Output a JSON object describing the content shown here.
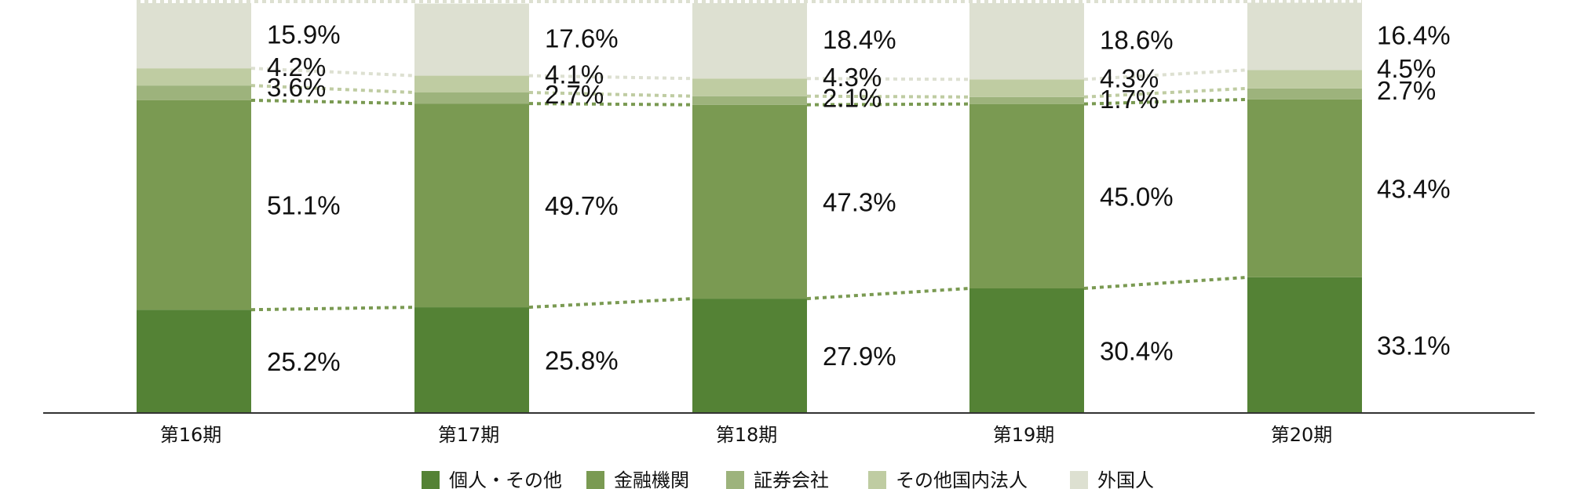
{
  "chart_data": {
    "type": "bar",
    "stacked": true,
    "categories": [
      "第16期",
      "第17期",
      "第18期",
      "第19期",
      "第20期"
    ],
    "ylim": [
      0,
      100
    ],
    "grid": false,
    "legend_position": "bottom",
    "connector_lines": "dotted",
    "series": [
      {
        "name": "個人・その他",
        "color": "#548235",
        "values": [
          25.2,
          25.8,
          27.9,
          30.4,
          33.1
        ],
        "labels": [
          "25.2%",
          "25.8%",
          "27.9%",
          "30.4%",
          "33.1%"
        ]
      },
      {
        "name": "金融機関",
        "color": "#7a9a52",
        "values": [
          51.1,
          49.7,
          47.3,
          45.0,
          43.4
        ],
        "labels": [
          "51.1%",
          "49.7%",
          "47.3%",
          "45.0%",
          "43.4%"
        ]
      },
      {
        "name": "証券会社",
        "color": "#9db37c",
        "values": [
          3.6,
          2.7,
          2.1,
          1.7,
          2.7
        ],
        "labels": [
          "3.6%",
          "2.7%",
          "2.1%",
          "1.7%",
          "2.7%"
        ]
      },
      {
        "name": "その他国内法人",
        "color": "#bfcca2",
        "values": [
          4.2,
          4.1,
          4.3,
          4.3,
          4.5
        ],
        "labels": [
          "4.2%",
          "4.1%",
          "4.3%",
          "4.3%",
          "4.5%"
        ]
      },
      {
        "name": "外国人",
        "color": "#dde0d1",
        "values": [
          15.9,
          17.6,
          18.4,
          18.6,
          16.4
        ],
        "labels": [
          "15.9%",
          "17.6%",
          "18.4%",
          "18.6%",
          "16.4%"
        ]
      }
    ]
  }
}
